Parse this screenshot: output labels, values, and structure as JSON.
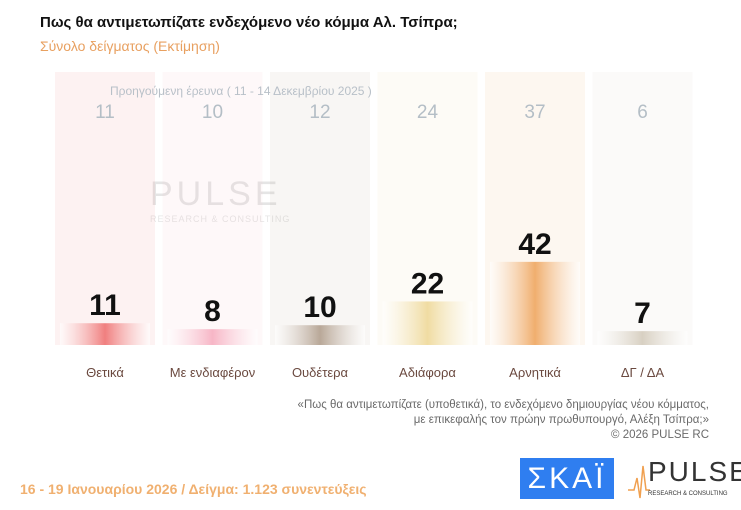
{
  "title": "Πως θα αντιμετωπίζατε ενδεχόμενο νέο κόμμα Αλ. Τσίπρα;",
  "subtitle": "Σύνολο δείγματος  (Εκτίμηση)",
  "chart_data": {
    "type": "bar",
    "title": "Πως θα αντιμετωπίζατε ενδεχόμενο νέο κόμμα Αλ. Τσίπρα;",
    "categories": [
      "Θετικά",
      "Με ενδιαφέρον",
      "Ουδέτερα",
      "Αδιάφορα",
      "Αρνητικά",
      "ΔΓ / ΔΑ"
    ],
    "series": [
      {
        "name": "16 - 19 Ιανουαρίου 2026",
        "values": [
          11,
          8,
          10,
          22,
          42,
          7
        ]
      },
      {
        "name": "Προηγούμενη έρευνα ( 11 - 14 Δεκεμβρίου 2025 )",
        "values": [
          11,
          10,
          12,
          24,
          37,
          6
        ]
      }
    ],
    "colors": [
      "#f07f7f",
      "#f7b6c6",
      "#b9a898",
      "#f0dca2",
      "#f0ae6e",
      "#d8d0c2"
    ],
    "ylim": [
      0,
      45
    ],
    "grid": false
  },
  "prev_label": "Προηγούμενη έρευνα ( 11 - 14 Δεκεμβρίου 2025 )",
  "note": {
    "line1": "«Πως θα αντιμετωπίζατε (υποθετικά), το ενδεχόμενο δημιουργίας νέου κόμματος,",
    "line2": "με επικεφαλής τον πρώην πρωθυπουργό, Αλέξη Τσίπρα;»",
    "line3": "©  2026  PULSE RC"
  },
  "footer": "16 - 19 Ιανουαρίου 2026  /  Δείγμα:  1.123 συνεντεύξεις",
  "logos": {
    "skai": "ΣΚΑΪ",
    "pulse": "PULSE",
    "pulse_sub": "RESEARCH & CONSULTING"
  }
}
